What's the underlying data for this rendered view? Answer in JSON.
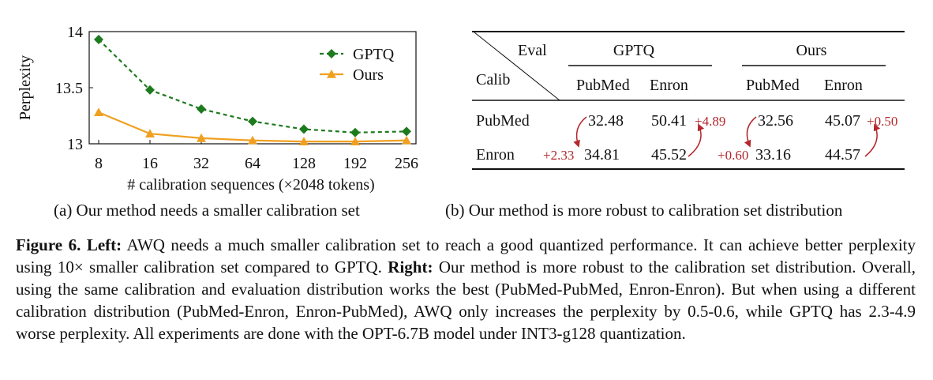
{
  "chart_data": {
    "type": "line",
    "title": "",
    "xlabel": "# calibration sequences (×2048 tokens)",
    "ylabel": "Perplexity",
    "categories": [
      "8",
      "16",
      "32",
      "64",
      "128",
      "192",
      "256"
    ],
    "ylim": [
      13,
      14
    ],
    "yticks": [
      "14",
      "13.5",
      "13"
    ],
    "series": [
      {
        "name": "GPTQ",
        "values": [
          13.93,
          13.48,
          13.31,
          13.2,
          13.13,
          13.1,
          13.11
        ],
        "color": "#1d7a1d",
        "marker": "diamond",
        "style": "dashed"
      },
      {
        "name": "Ours",
        "values": [
          13.28,
          13.09,
          13.05,
          13.03,
          13.02,
          13.02,
          13.03
        ],
        "color": "#f0a020",
        "marker": "triangle",
        "style": "solid"
      }
    ],
    "grid": false,
    "legend_position": "top-right"
  },
  "subcaptions": {
    "a": "(a) Our method needs a smaller calibration set",
    "b": "(b) Our method is more robust to calibration set distribution"
  },
  "table": {
    "eval_label": "Eval",
    "calib_label": "Calib",
    "groups": [
      "GPTQ",
      "Ours"
    ],
    "columns": [
      "PubMed",
      "Enron",
      "PubMed",
      "Enron"
    ],
    "rows": [
      {
        "label": "PubMed",
        "values": [
          "32.48",
          "50.41",
          "32.56",
          "45.07"
        ]
      },
      {
        "label": "Enron",
        "values": [
          "34.81",
          "45.52",
          "33.16",
          "44.57"
        ]
      }
    ],
    "deltas": {
      "gptq_enron_on_pubmed": "+4.89",
      "gptq_pubmed_on_enron": "+2.33",
      "ours_enron_on_pubmed": "+0.50",
      "ours_pubmed_on_enron": "+0.60"
    },
    "delta_color": "#b3272c"
  },
  "caption": {
    "figure_label": "Figure 6.",
    "left_label": "Left:",
    "left_text": "AWQ needs a much smaller calibration set to reach a good quantized performance. It can achieve better perplexity using 10× smaller calibration set compared to GPTQ.",
    "right_label": "Right:",
    "right_text": "Our method is more robust to the calibration set distribution. Overall, using the same calibration and evaluation distribution works the best (PubMed-PubMed, Enron-Enron). But when using a different calibration distribution (PubMed-Enron, Enron-PubMed), AWQ only increases the perplexity by 0.5-0.6, while GPTQ has 2.3-4.9 worse perplexity. All experiments are done with the OPT-6.7B model under INT3-g128 quantization."
  }
}
